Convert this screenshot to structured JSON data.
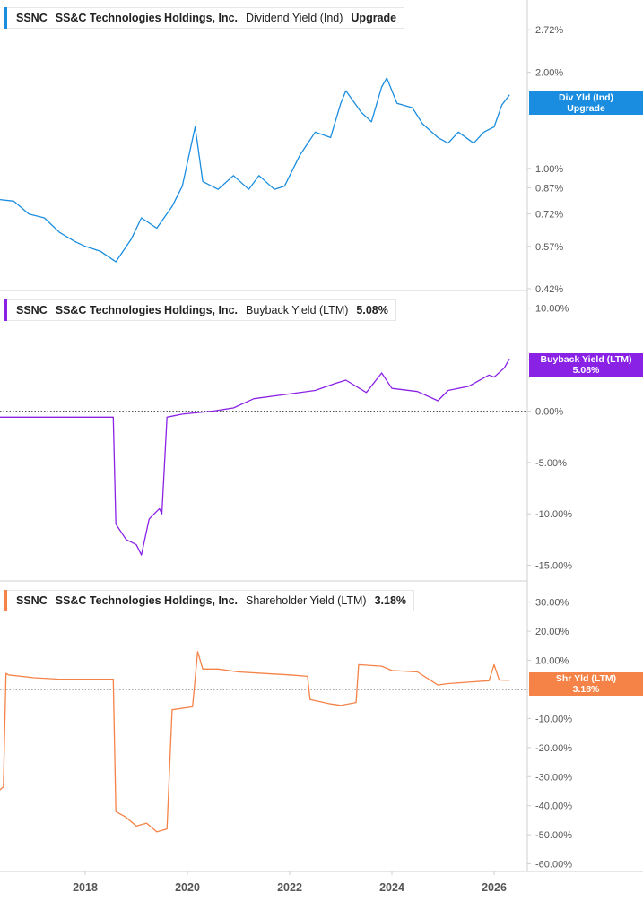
{
  "x_ticks": [
    "2018",
    "2020",
    "2022",
    "2024",
    "2026"
  ],
  "panels": [
    {
      "ticker": "SSNC",
      "company": "SS&C Technologies Holdings, Inc.",
      "metric": "Dividend Yield (Ind)",
      "value": "Upgrade",
      "tag_line1": "Div Yld (Ind)",
      "tag_line2": "Upgrade",
      "color": "#1a8de0"
    },
    {
      "ticker": "SSNC",
      "company": "SS&C Technologies Holdings, Inc.",
      "metric": "Buyback Yield (LTM)",
      "value": "5.08%",
      "tag_line1": "Buyback Yield (LTM)",
      "tag_line2": "5.08%",
      "color": "#8a22e6"
    },
    {
      "ticker": "SSNC",
      "company": "SS&C Technologies Holdings, Inc.",
      "metric": "Shareholder Yield (LTM)",
      "value": "3.18%",
      "tag_line1": "Shr Yld (LTM)",
      "tag_line2": "3.18%",
      "color": "#f58348"
    }
  ],
  "chart_data": [
    {
      "type": "line",
      "title": "SSNC SS&C Technologies Holdings, Inc. Dividend Yield (Ind)",
      "scale": "log",
      "ytick_labels": [
        "2.72%",
        "2.00%",
        "1.00%",
        "0.87%",
        "0.72%",
        "0.57%",
        "0.42%"
      ],
      "ytick_values": [
        2.72,
        2.0,
        1.0,
        0.87,
        0.72,
        0.57,
        0.42
      ],
      "ylim": [
        0.42,
        3.2
      ],
      "series": [
        {
          "x": [
            2016.0,
            2016.3,
            2016.6,
            2016.9,
            2017.2,
            2017.5,
            2017.8,
            2018.0,
            2018.3,
            2018.6,
            2018.9,
            2019.1,
            2019.4,
            2019.7,
            2019.9,
            2020.15,
            2020.3,
            2020.6,
            2020.9,
            2021.2,
            2021.4,
            2021.7,
            2021.9,
            2022.2,
            2022.5,
            2022.8,
            2023.0,
            2023.1,
            2023.4,
            2023.6,
            2023.8,
            2023.9,
            2024.1,
            2024.4,
            2024.6,
            2024.9,
            2025.1,
            2025.3,
            2025.6,
            2025.8,
            2026.0,
            2026.15,
            2026.3
          ],
          "y": [
            0.87,
            0.8,
            0.79,
            0.72,
            0.7,
            0.63,
            0.59,
            0.57,
            0.55,
            0.51,
            0.6,
            0.7,
            0.65,
            0.76,
            0.88,
            1.35,
            0.91,
            0.86,
            0.95,
            0.86,
            0.95,
            0.86,
            0.88,
            1.1,
            1.3,
            1.25,
            1.6,
            1.75,
            1.5,
            1.4,
            1.8,
            1.92,
            1.6,
            1.55,
            1.38,
            1.25,
            1.2,
            1.3,
            1.2,
            1.3,
            1.35,
            1.58,
            1.7
          ]
        }
      ]
    },
    {
      "type": "line",
      "title": "SSNC SS&C Technologies Holdings, Inc. Buyback Yield (LTM)",
      "ytick_labels": [
        "10.00%",
        "5.00%",
        "0.00%",
        "-5.00%",
        "-10.00%",
        "-15.00%"
      ],
      "ytick_values": [
        10,
        5,
        0,
        -5,
        -10,
        -15
      ],
      "ylim": [
        -16.0,
        10.5
      ],
      "series": [
        {
          "x": [
            2016.0,
            2016.1,
            2016.2,
            2016.3,
            2017.0,
            2018.0,
            2018.55,
            2018.6,
            2018.8,
            2019.0,
            2019.1,
            2019.25,
            2019.45,
            2019.5,
            2019.6,
            2019.9,
            2020.5,
            2020.9,
            2021.3,
            2021.9,
            2022.5,
            2022.9,
            2023.1,
            2023.5,
            2023.8,
            2024.0,
            2024.5,
            2024.9,
            2025.1,
            2025.5,
            2025.9,
            2026.0,
            2026.2,
            2026.3
          ],
          "y": [
            -12.5,
            -13.5,
            -14.2,
            -0.6,
            -0.6,
            -0.6,
            -0.6,
            -11.0,
            -12.5,
            -13.0,
            -14.0,
            -10.5,
            -9.5,
            -10.0,
            -0.6,
            -0.3,
            0.0,
            0.3,
            1.2,
            1.6,
            2.0,
            2.7,
            3.0,
            1.8,
            3.7,
            2.2,
            1.9,
            1.0,
            2.0,
            2.4,
            3.5,
            3.3,
            4.2,
            5.08
          ]
        }
      ]
    },
    {
      "type": "line",
      "title": "SSNC SS&C Technologies Holdings, Inc. Shareholder Yield (LTM)",
      "ytick_labels": [
        "30.00%",
        "20.00%",
        "10.00%",
        "0.00%",
        "-10.00%",
        "-20.00%",
        "-30.00%",
        "-40.00%",
        "-50.00%",
        "-60.00%"
      ],
      "ytick_values": [
        30,
        20,
        10,
        0,
        -10,
        -20,
        -30,
        -40,
        -50,
        -60
      ],
      "ylim": [
        -62.0,
        33.0
      ],
      "series": [
        {
          "x": [
            2016.0,
            2016.1,
            2016.15,
            2016.3,
            2016.4,
            2016.45,
            2016.5,
            2017.0,
            2017.5,
            2018.0,
            2018.55,
            2018.6,
            2018.8,
            2019.0,
            2019.2,
            2019.4,
            2019.6,
            2019.7,
            2020.1,
            2020.2,
            2020.3,
            2020.6,
            2021.0,
            2021.5,
            2022.0,
            2022.35,
            2022.4,
            2022.8,
            2023.0,
            2023.3,
            2023.35,
            2023.8,
            2024.0,
            2024.5,
            2024.9,
            2025.1,
            2025.5,
            2025.9,
            2026.0,
            2026.1,
            2026.3
          ],
          "y": [
            -52.0,
            -54.0,
            -40.0,
            -35.0,
            -33.5,
            5.5,
            5.0,
            4.0,
            3.5,
            3.5,
            3.5,
            -42.0,
            -44.0,
            -47.0,
            -46.0,
            -49.0,
            -48.0,
            -7.0,
            -6.0,
            13.0,
            7.0,
            7.0,
            6.0,
            5.5,
            5.0,
            4.5,
            -3.5,
            -5.0,
            -5.5,
            -4.5,
            8.5,
            8.0,
            6.5,
            6.0,
            1.5,
            2.0,
            2.5,
            3.0,
            8.5,
            3.2,
            3.18
          ]
        }
      ]
    }
  ]
}
